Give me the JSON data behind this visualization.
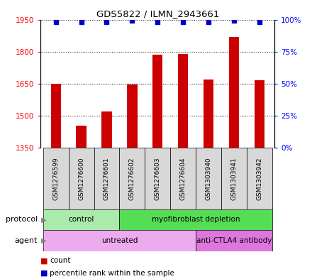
{
  "title": "GDS5822 / ILMN_2943661",
  "samples": [
    "GSM1276599",
    "GSM1276600",
    "GSM1276601",
    "GSM1276602",
    "GSM1276603",
    "GSM1276604",
    "GSM1303940",
    "GSM1303941",
    "GSM1303942"
  ],
  "counts": [
    1650,
    1455,
    1520,
    1645,
    1785,
    1790,
    1670,
    1870,
    1665
  ],
  "percentiles": [
    98,
    98,
    98,
    99,
    98,
    98,
    98,
    99,
    98
  ],
  "ylim_left": [
    1350,
    1950
  ],
  "ylim_right": [
    0,
    100
  ],
  "yticks_left": [
    1350,
    1500,
    1650,
    1800,
    1950
  ],
  "yticks_right": [
    0,
    25,
    50,
    75,
    100
  ],
  "bar_color": "#cc0000",
  "dot_color": "#0000cc",
  "protocol_groups": [
    {
      "label": "control",
      "start": 0,
      "end": 3,
      "color": "#aaeaaa"
    },
    {
      "label": "myofibroblast depletion",
      "start": 3,
      "end": 9,
      "color": "#55dd55"
    }
  ],
  "agent_groups": [
    {
      "label": "untreated",
      "start": 0,
      "end": 6,
      "color": "#eeaaee"
    },
    {
      "label": "anti-CTLA4 antibody",
      "start": 6,
      "end": 9,
      "color": "#dd77dd"
    }
  ],
  "protocol_label": "protocol",
  "agent_label": "agent",
  "legend_count_label": "count",
  "legend_pct_label": "percentile rank within the sample",
  "sample_box_color": "#d8d8d8",
  "plot_bg": "#ffffff",
  "grid_color": "#000000",
  "bar_bottom": 1350,
  "bar_width": 0.4
}
